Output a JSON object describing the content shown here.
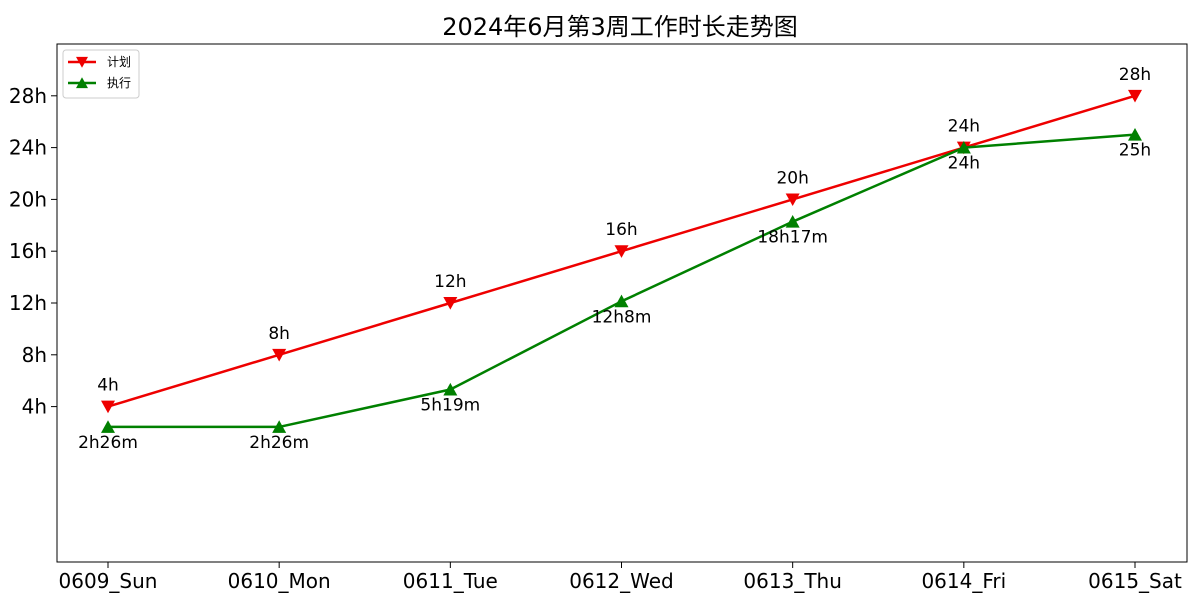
{
  "chart_data": {
    "type": "line",
    "title": "2024年6月第3周工作时长走势图",
    "xlabel": "",
    "ylabel": "",
    "categories": [
      "0609_Sun",
      "0610_Mon",
      "0611_Tue",
      "0612_Wed",
      "0613_Thu",
      "0614_Fri",
      "0615_Sat"
    ],
    "ylim": [
      -8,
      32
    ],
    "yticks": [
      {
        "value": 4,
        "label": "4h"
      },
      {
        "value": 8,
        "label": "8h"
      },
      {
        "value": 12,
        "label": "12h"
      },
      {
        "value": 16,
        "label": "16h"
      },
      {
        "value": 20,
        "label": "20h"
      },
      {
        "value": 24,
        "label": "24h"
      },
      {
        "value": 28,
        "label": "28h"
      }
    ],
    "grid": false,
    "legend_position": "top-left",
    "series": [
      {
        "name": "计划",
        "color": "#ee0000",
        "marker": "triangle-down",
        "values": [
          4,
          8,
          12,
          16,
          20,
          24,
          28
        ],
        "labels": [
          "4h",
          "8h",
          "12h",
          "16h",
          "20h",
          "24h",
          "28h"
        ],
        "label_position": "above"
      },
      {
        "name": "执行",
        "color": "#008000",
        "marker": "triangle-up",
        "values": [
          2.43,
          2.43,
          5.32,
          12.13,
          18.28,
          24,
          25
        ],
        "labels": [
          "2h26m",
          "2h26m",
          "5h19m",
          "12h8m",
          "18h17m",
          "24h",
          "25h"
        ],
        "label_position": "below"
      }
    ]
  }
}
